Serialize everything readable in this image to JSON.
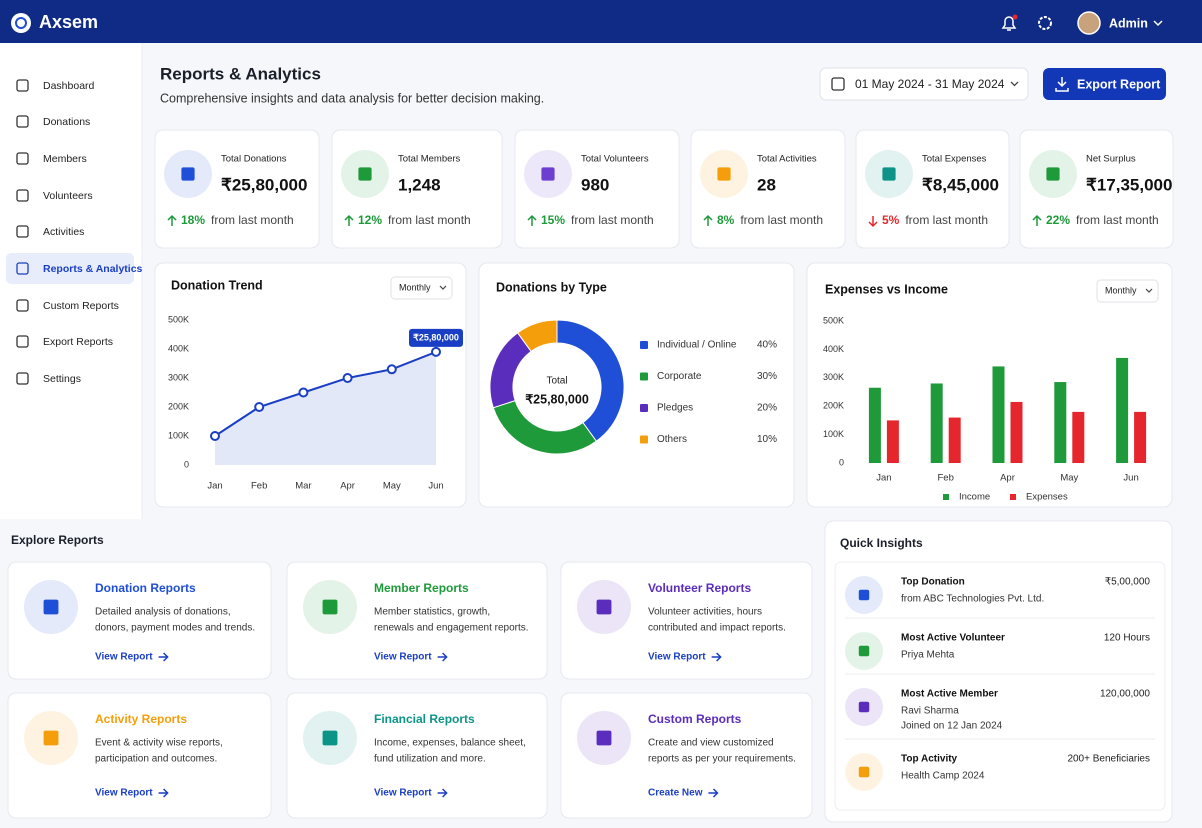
{
  "header": {
    "brand": "Axsem",
    "user": "Admin"
  },
  "sidebar": {
    "items": [
      "Dashboard",
      "Donations",
      "Members",
      "Volunteers",
      "Activities",
      "Reports & Analytics",
      "Custom Reports",
      "Export Reports",
      "Settings"
    ],
    "active": 5
  },
  "page": {
    "title": "Reports & Analytics",
    "subtitle": "Comprehensive insights and data analysis for better decision making.",
    "date_range": "01 May 2024 - 31 May 2024",
    "export_button": "Export Report"
  },
  "stats": [
    {
      "label": "Total Donations",
      "value": "₹25,80,000",
      "change": "18%",
      "change_note": "from last month",
      "direction": "up",
      "color": "#1f4fd6"
    },
    {
      "label": "Total Members",
      "value": "1,248",
      "change": "12%",
      "change_note": "from last month",
      "direction": "up",
      "color": "#1e9a3a"
    },
    {
      "label": "Total Volunteers",
      "value": "980",
      "change": "15%",
      "change_note": "from last month",
      "direction": "up",
      "color": "#6d3fd1"
    },
    {
      "label": "Total Activities",
      "value": "28",
      "change": "8%",
      "change_note": "from last month",
      "direction": "up",
      "color": "#f59e0b"
    },
    {
      "label": "Total Expenses",
      "value": "₹8,45,000",
      "change": "5%",
      "change_note": "from last month",
      "direction": "down",
      "color": "#0d9488"
    },
    {
      "label": "Net Surplus",
      "value": "₹17,35,000",
      "change": "22%",
      "change_note": "from last month",
      "direction": "up",
      "color": "#1e9a3a"
    }
  ],
  "chart_data": [
    {
      "type": "line",
      "title": "Donation Trend",
      "control": "Monthly",
      "categories": [
        "Jan",
        "Feb",
        "Mar",
        "Apr",
        "May",
        "Jun"
      ],
      "values": [
        100000,
        200000,
        250000,
        300000,
        330000,
        390000
      ],
      "color": "#1a3fc4",
      "area": true,
      "ylim": [
        0,
        500000
      ],
      "yticks": [
        0,
        {
          "value": 100000,
          "label": "100K"
        },
        {
          "value": 200000,
          "label": "200K"
        },
        {
          "value": 300000,
          "label": "300K"
        },
        {
          "value": 400000,
          "label": "400K"
        },
        {
          "value": 500000,
          "label": "500K"
        }
      ],
      "annotation": "₹25,80,000"
    },
    {
      "type": "pie",
      "title": "Donations by Type",
      "donut": true,
      "categories": [
        "Individual / Online",
        "Corporate",
        "Pledges",
        "Others"
      ],
      "values": [
        40,
        30,
        20,
        10
      ],
      "value_labels": [
        "40%",
        "30%",
        "20%",
        "10%"
      ],
      "colors": [
        "#1f4fd6",
        "#1e9a3a",
        "#5b2dbd",
        "#f59e0b"
      ],
      "center_label": "Total",
      "center_value": "₹25,80,000"
    },
    {
      "type": "bar",
      "title": "Expenses vs Income",
      "control": "Monthly",
      "categories": [
        "Jan",
        "Feb",
        "Apr",
        "May",
        "Jun"
      ],
      "series": [
        {
          "name": "Income",
          "color": "#1e9a3a",
          "values": [
            265000,
            280000,
            340000,
            285000,
            370000
          ]
        },
        {
          "name": "Expenses",
          "color": "#e5262d",
          "values": [
            150000,
            160000,
            215000,
            180000,
            180000
          ]
        }
      ],
      "ylim": [
        0,
        500000
      ],
      "yticks": [
        0,
        {
          "value": 100000,
          "label": "100K"
        },
        {
          "value": 200000,
          "label": "200K"
        },
        {
          "value": 300000,
          "label": "300K"
        },
        {
          "value": 400000,
          "label": "400K"
        },
        {
          "value": 500000,
          "label": "500K"
        }
      ],
      "legend": "bottom"
    }
  ],
  "explore": {
    "title": "Explore Reports",
    "cards": [
      {
        "title": "Donation Reports",
        "description": [
          "Detailed analysis of donations,",
          "donors, payment modes and trends."
        ],
        "link": "View Report",
        "color": "#1f4fd6"
      },
      {
        "title": "Member Reports",
        "description": [
          "Member statistics, growth,",
          "renewals and engagement reports."
        ],
        "link": "View Report",
        "color": "#1e9a3a"
      },
      {
        "title": "Volunteer Reports",
        "description": [
          "Volunteer activities, hours",
          "contributed and impact reports."
        ],
        "link": "View Report",
        "color": "#5b2dbd"
      },
      {
        "title": "Activity Reports",
        "description": [
          "Event & activity wise reports,",
          "participation and outcomes."
        ],
        "link": "View Report",
        "color": "#f59e0b"
      },
      {
        "title": "Financial Reports",
        "description": [
          "Income, expenses, balance sheet,",
          "fund utilization and more."
        ],
        "link": "View Report",
        "color": "#0d9488"
      },
      {
        "title": "Custom Reports",
        "description": [
          "Create and view customized",
          "reports as per your requirements."
        ],
        "link": "Create New",
        "color": "#5b2dbd"
      }
    ]
  },
  "insights": {
    "title": "Quick Insights",
    "items": [
      {
        "label": "Top Donation",
        "value": "₹5,00,000",
        "details": [
          "from ABC Technologies Pvt. Ltd."
        ],
        "color": "#1f4fd6"
      },
      {
        "label": "Most Active Volunteer",
        "value": "120 Hours",
        "details": [
          "Priya Mehta"
        ],
        "color": "#1e9a3a"
      },
      {
        "label": "Most Active Member",
        "value": "120,00,000",
        "details": [
          "Ravi Sharma",
          "Joined on 12 Jan 2024"
        ],
        "color": "#5b2dbd"
      },
      {
        "label": "Top Activity",
        "value": "200+ Beneficiaries",
        "details": [
          "Health Camp 2024"
        ],
        "color": "#f59e0b"
      }
    ]
  }
}
